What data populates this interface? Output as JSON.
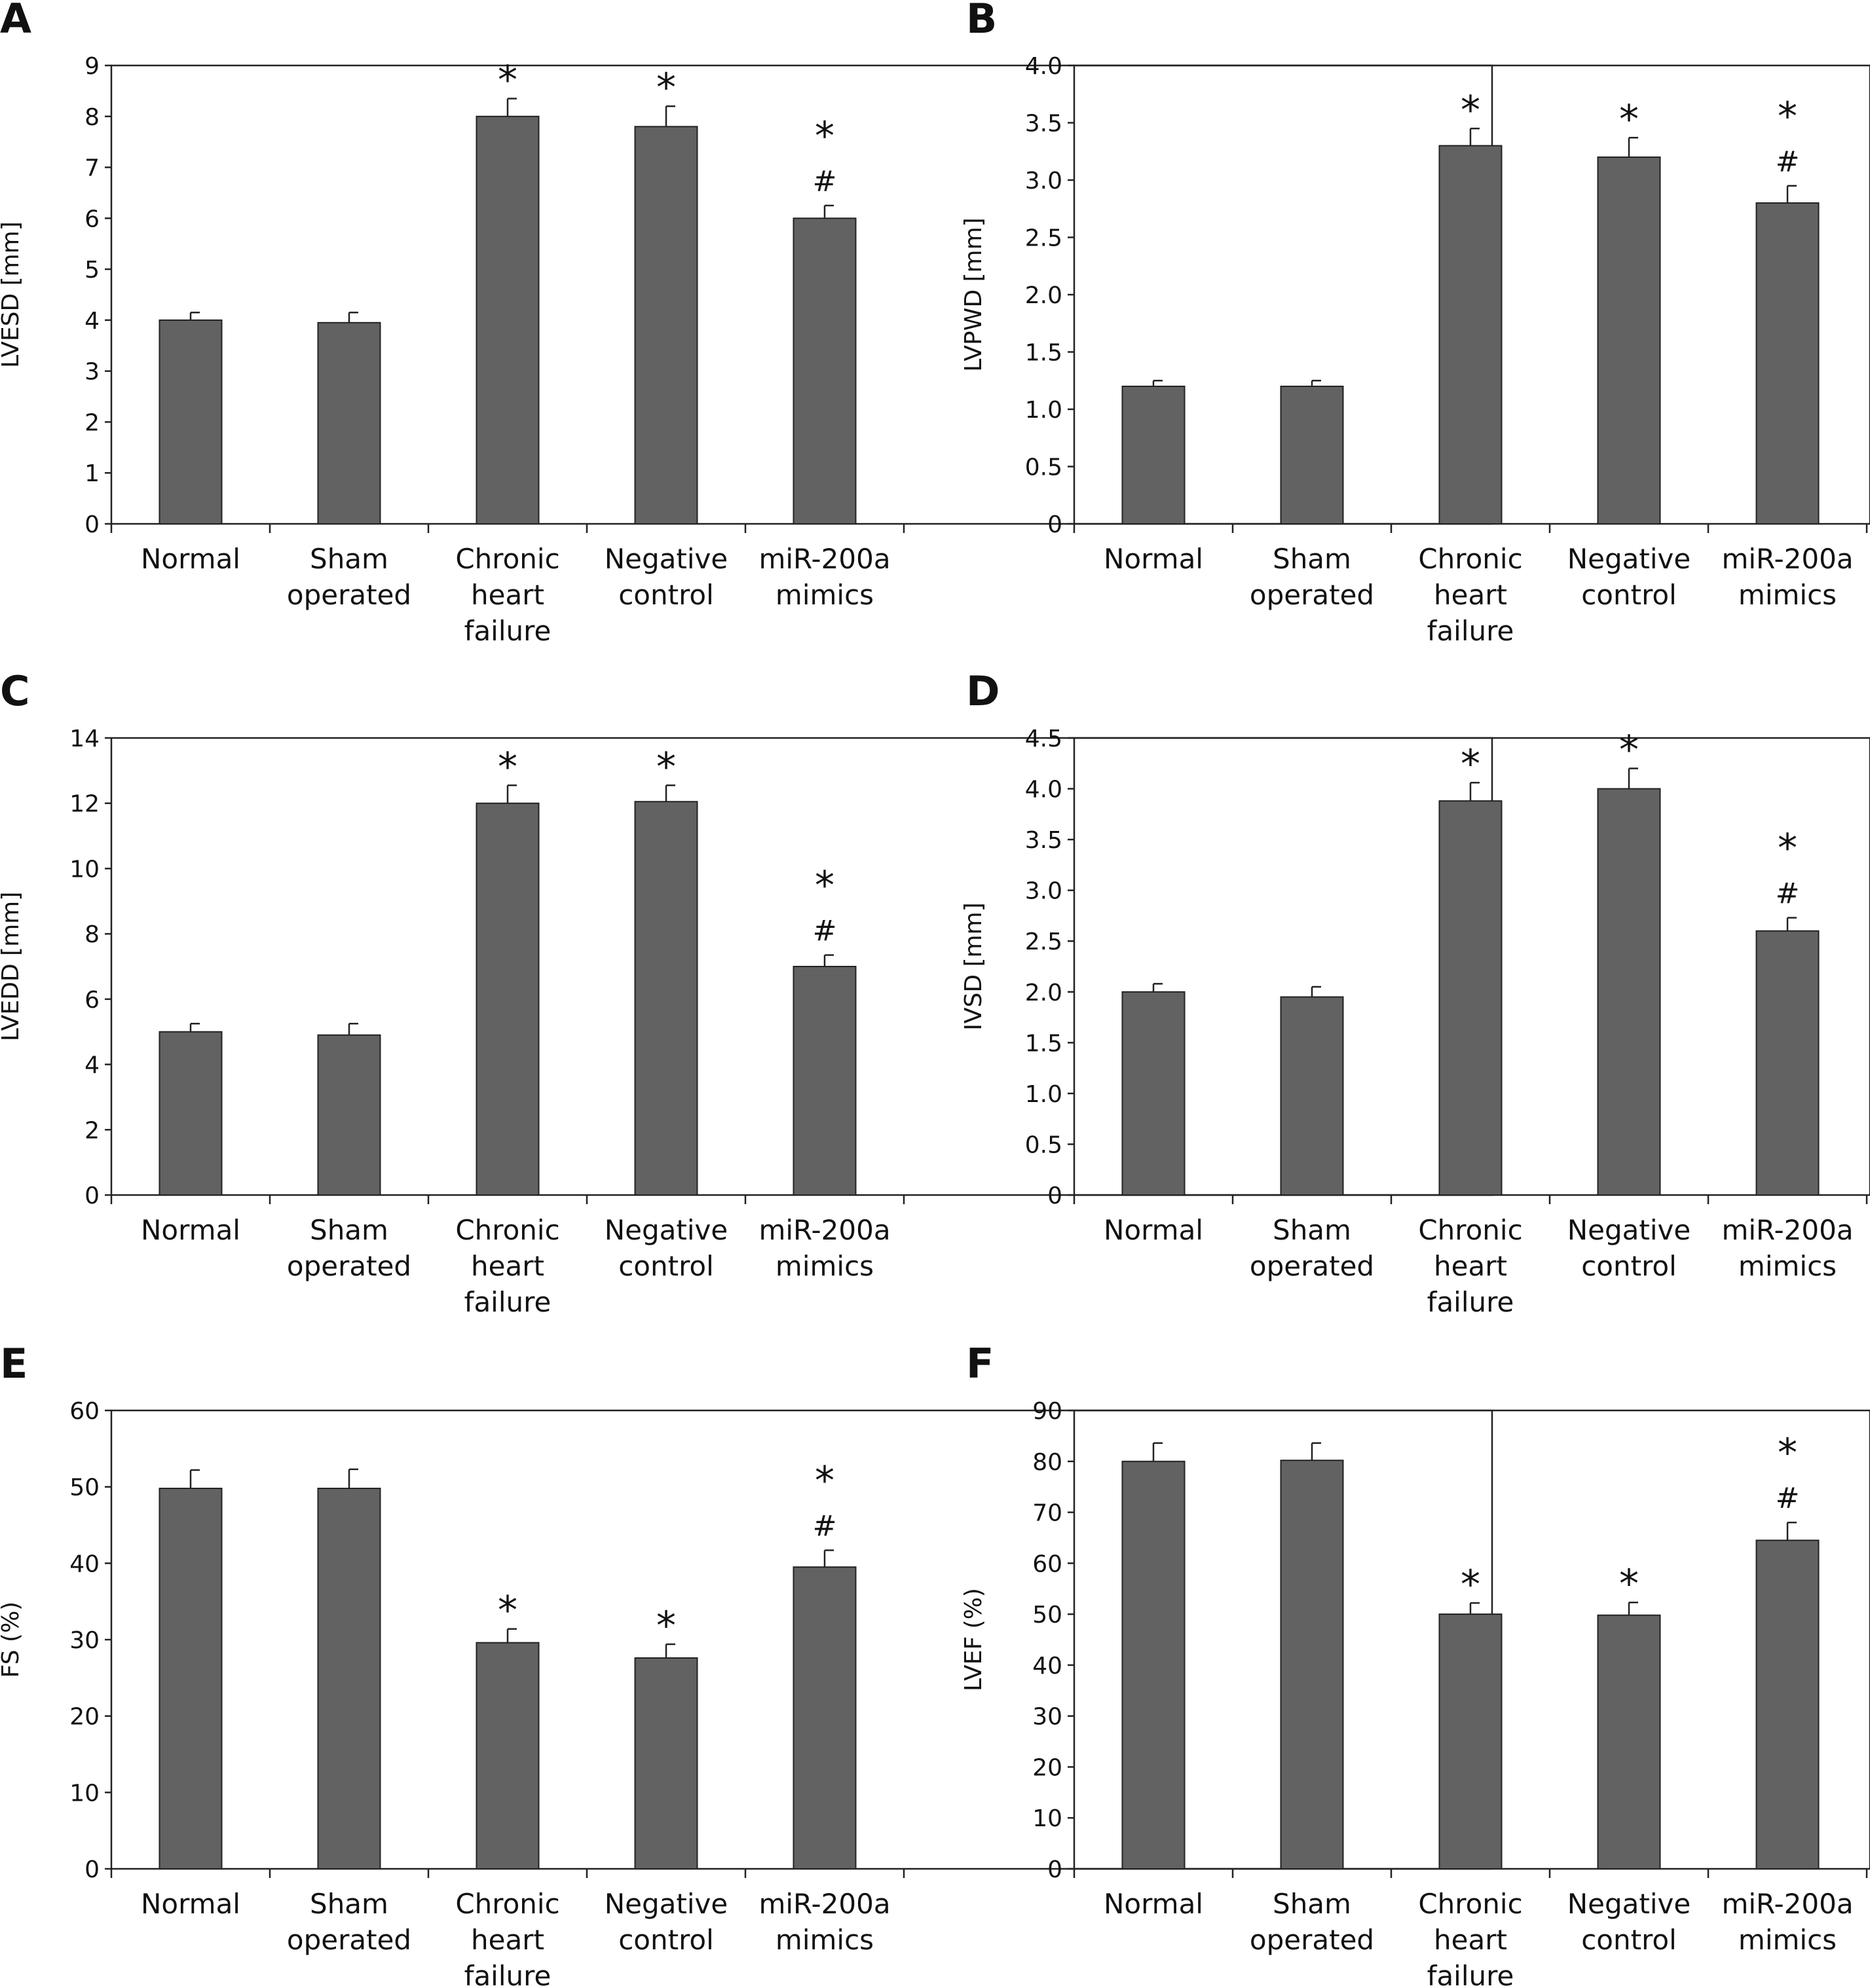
{
  "colors": {
    "bar": "#626262",
    "axis": "#222222",
    "background": "#ffffff"
  },
  "chart_data": [
    {
      "panel": "A",
      "type": "bar",
      "ylabel": "LVESD [mm]",
      "categories": [
        [
          "Normal"
        ],
        [
          "Sham",
          "operated"
        ],
        [
          "Chronic",
          "heart",
          "failure"
        ],
        [
          "Negative",
          "control"
        ],
        [
          "miR-200a",
          "mimics"
        ]
      ],
      "values": [
        4.0,
        3.95,
        8.0,
        7.8,
        6.0
      ],
      "errors": [
        0.15,
        0.2,
        0.35,
        0.4,
        0.25
      ],
      "markers": [
        [],
        [],
        [
          "*"
        ],
        [
          "*"
        ],
        [
          "*",
          "#"
        ]
      ],
      "ylim": [
        0,
        9
      ],
      "yticks": [
        "0",
        "1",
        "2",
        "3",
        "4",
        "5",
        "6",
        "7",
        "8",
        "9"
      ],
      "grid": false
    },
    {
      "panel": "B",
      "type": "bar",
      "ylabel": "LVPWD [mm]",
      "categories": [
        [
          "Normal"
        ],
        [
          "Sham",
          "operated"
        ],
        [
          "Chronic",
          "heart",
          "failure"
        ],
        [
          "Negative",
          "control"
        ],
        [
          "miR-200a",
          "mimics"
        ]
      ],
      "values": [
        1.2,
        1.2,
        3.3,
        3.2,
        2.8
      ],
      "errors": [
        0.05,
        0.05,
        0.15,
        0.17,
        0.15
      ],
      "markers": [
        [],
        [],
        [
          "*"
        ],
        [
          "*"
        ],
        [
          "*",
          "#"
        ]
      ],
      "ylim": [
        0,
        4
      ],
      "yticks": [
        "0",
        "0.5",
        "1.0",
        "1.5",
        "2.0",
        "2.5",
        "3.0",
        "3.5",
        "4.0"
      ],
      "grid": false
    },
    {
      "panel": "C",
      "type": "bar",
      "ylabel": "LVEDD [mm]",
      "categories": [
        [
          "Normal"
        ],
        [
          "Sham",
          "operated"
        ],
        [
          "Chronic",
          "heart",
          "failure"
        ],
        [
          "Negative",
          "control"
        ],
        [
          "miR-200a",
          "mimics"
        ]
      ],
      "values": [
        5.0,
        4.9,
        12.0,
        12.05,
        7.0
      ],
      "errors": [
        0.25,
        0.35,
        0.55,
        0.5,
        0.35
      ],
      "markers": [
        [],
        [],
        [
          "*"
        ],
        [
          "*"
        ],
        [
          "*",
          "#"
        ]
      ],
      "ylim": [
        0,
        14
      ],
      "yticks": [
        "0",
        "2",
        "4",
        "6",
        "8",
        "10",
        "12",
        "14"
      ],
      "grid": false
    },
    {
      "panel": "D",
      "type": "bar",
      "ylabel": "IVSD [mm]",
      "categories": [
        [
          "Normal"
        ],
        [
          "Sham",
          "operated"
        ],
        [
          "Chronic",
          "heart",
          "failure"
        ],
        [
          "Negative",
          "control"
        ],
        [
          "miR-200a",
          "mimics"
        ]
      ],
      "values": [
        2.0,
        1.95,
        3.88,
        4.0,
        2.6
      ],
      "errors": [
        0.08,
        0.1,
        0.18,
        0.2,
        0.13
      ],
      "markers": [
        [],
        [],
        [
          "*"
        ],
        [
          "*"
        ],
        [
          "*",
          "#"
        ]
      ],
      "ylim": [
        0,
        4.5
      ],
      "yticks": [
        "0",
        "0.5",
        "1.0",
        "1.5",
        "2.0",
        "2.5",
        "3.0",
        "3.5",
        "4.0",
        "4.5"
      ],
      "grid": false
    },
    {
      "panel": "E",
      "type": "bar",
      "ylabel": "FS (%)",
      "categories": [
        [
          "Normal"
        ],
        [
          "Sham",
          "operated"
        ],
        [
          "Chronic",
          "heart",
          "failure"
        ],
        [
          "Negative",
          "control"
        ],
        [
          "miR-200a",
          "mimics"
        ]
      ],
      "values": [
        49.8,
        49.8,
        29.6,
        27.6,
        39.5
      ],
      "errors": [
        2.4,
        2.5,
        1.8,
        1.8,
        2.2
      ],
      "markers": [
        [],
        [],
        [
          "*"
        ],
        [
          "*"
        ],
        [
          "*",
          "#"
        ]
      ],
      "ylim": [
        0,
        60
      ],
      "yticks": [
        "0",
        "10",
        "20",
        "30",
        "40",
        "50",
        "60"
      ],
      "grid": false
    },
    {
      "panel": "F",
      "type": "bar",
      "ylabel": "LVEF (%)",
      "categories": [
        [
          "Normal"
        ],
        [
          "Sham",
          "operated"
        ],
        [
          "Chronic",
          "heart",
          "failure"
        ],
        [
          "Negative",
          "control"
        ],
        [
          "miR-200a",
          "mimics"
        ]
      ],
      "values": [
        80.0,
        80.2,
        50.0,
        49.8,
        64.5
      ],
      "errors": [
        3.6,
        3.4,
        2.2,
        2.5,
        3.5
      ],
      "markers": [
        [],
        [],
        [
          "*"
        ],
        [
          "*"
        ],
        [
          "*",
          "#"
        ]
      ],
      "ylim": [
        0,
        90
      ],
      "yticks": [
        "0",
        "10",
        "20",
        "30",
        "40",
        "50",
        "60",
        "70",
        "80",
        "90"
      ],
      "grid": false
    }
  ]
}
